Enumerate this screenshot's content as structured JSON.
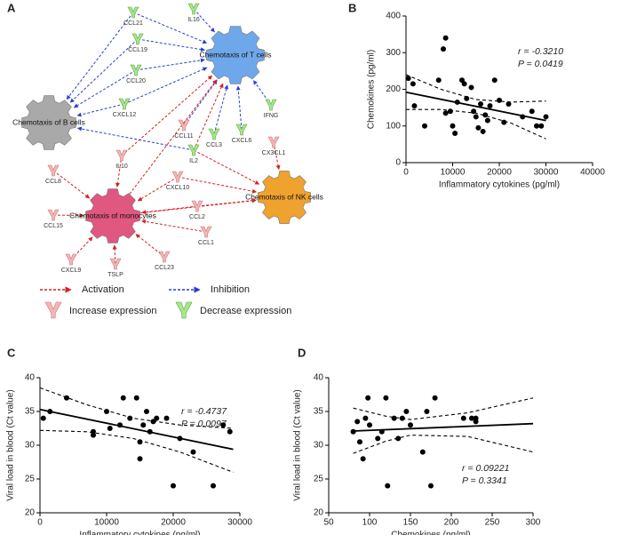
{
  "diagram": {
    "panel_label": "A",
    "hubs": [
      "Chemotaxis of T cells",
      "Chemotaxis of B cells",
      "Chemotaxis of monocytes",
      "Chemotaxis of NK cells"
    ],
    "genes": [
      "CCL21",
      "IL16",
      "CCL19",
      "CCL20",
      "CXCL12",
      "IFNG",
      "CCL11",
      "CCL3",
      "CXCL6",
      "CX3CL1",
      "IL10",
      "IL2",
      "CCL8",
      "CXCL10",
      "CCL15",
      "CCL2",
      "CCL1",
      "CXCL9",
      "TSLP",
      "CCL23"
    ],
    "legend": [
      "Activation",
      "Inhibition",
      "Increase expression",
      "Decrease expression"
    ]
  },
  "chart_data": [
    {
      "type": "scatter",
      "panel_label": "B",
      "x_label": "Inflammatory cytokines (pg/ml)",
      "y_label": "Chemokines (pg/ml)",
      "annotations": [
        "r = -0.3210",
        "P = 0.0419"
      ],
      "color": "#000000",
      "x": [
        500,
        1500,
        1800,
        4000,
        7000,
        8000,
        8500,
        8500,
        9500,
        10000,
        10500,
        11000,
        12000,
        12500,
        13000,
        14000,
        14500,
        15000,
        15500,
        16000,
        16500,
        17000,
        17500,
        18000,
        19000,
        20000,
        21000,
        22000,
        25000,
        27000,
        28000,
        29000,
        30000
      ],
      "values": [
        230,
        215,
        155,
        100,
        225,
        310,
        340,
        135,
        140,
        100,
        80,
        165,
        225,
        215,
        175,
        205,
        140,
        125,
        95,
        160,
        85,
        130,
        115,
        155,
        225,
        170,
        110,
        160,
        125,
        140,
        100,
        100,
        125
      ],
      "fit": {
        "x": [
          0,
          30000
        ],
        "values": [
          192,
          115
        ]
      },
      "ci_upper": {
        "x": [
          0,
          7500,
          15000,
          22500,
          30000
        ],
        "values": [
          240,
          200,
          172,
          165,
          168
        ]
      },
      "ci_lower": {
        "x": [
          0,
          7500,
          15000,
          22500,
          30000
        ],
        "values": [
          145,
          145,
          135,
          108,
          65
        ]
      },
      "xlim": [
        0,
        40000
      ],
      "xticks": [
        0,
        10000,
        20000,
        30000,
        40000
      ],
      "ylim": [
        0,
        400
      ],
      "yticks": [
        0,
        100,
        200,
        300,
        400
      ]
    },
    {
      "type": "scatter",
      "panel_label": "C",
      "x_label": "Inflammatory cytokines (pg/ml)",
      "y_label": "Viral load in blood (Ct value)",
      "annotations": [
        "r = -0.4737",
        "P = 0.0097"
      ],
      "color": "#000000",
      "x": [
        500,
        1500,
        4000,
        8000,
        8000,
        10000,
        10500,
        12000,
        12500,
        13500,
        14500,
        15000,
        15000,
        15500,
        16000,
        16500,
        17000,
        17500,
        19000,
        20000,
        21000,
        23000,
        26000,
        27500,
        28500
      ],
      "values": [
        34,
        35,
        37,
        31.5,
        32,
        35,
        32.5,
        33,
        37,
        34,
        37,
        28,
        30.5,
        33,
        35,
        32,
        33.5,
        34,
        34,
        24,
        31,
        29,
        24,
        33,
        32
      ],
      "fit": {
        "x": [
          0,
          29000
        ],
        "values": [
          35.3,
          29.4
        ]
      },
      "ci_upper": {
        "x": [
          0,
          7000,
          14000,
          21000,
          29000
        ],
        "values": [
          38.5,
          36,
          34,
          33,
          32.5
        ]
      },
      "ci_lower": {
        "x": [
          0,
          7000,
          14000,
          21000,
          29000
        ],
        "values": [
          32.2,
          32,
          31,
          29,
          26
        ]
      },
      "xlim": [
        0,
        30000
      ],
      "xticks": [
        0,
        10000,
        20000,
        30000
      ],
      "ylim": [
        20,
        40
      ],
      "yticks": [
        20,
        25,
        30,
        35,
        40
      ]
    },
    {
      "type": "scatter",
      "panel_label": "D",
      "x_label": "Chemokines (pg/ml)",
      "y_label": "Viral load in blood (Ct value)",
      "annotations": [
        "r = 0.09221",
        "P = 0.3341"
      ],
      "color": "#000000",
      "x": [
        80,
        85,
        88,
        92,
        95,
        98,
        100,
        110,
        115,
        120,
        122,
        130,
        135,
        140,
        145,
        150,
        165,
        170,
        175,
        180,
        215,
        225,
        230,
        230
      ],
      "values": [
        32,
        33.5,
        30.5,
        28,
        34,
        37,
        33,
        31,
        32,
        37,
        24,
        34,
        31,
        34,
        35,
        33,
        29,
        35,
        24,
        37,
        34,
        34,
        34,
        33.5
      ],
      "fit": {
        "x": [
          80,
          300
        ],
        "values": [
          32.1,
          33.2
        ]
      },
      "ci_upper": {
        "x": [
          80,
          120,
          150,
          220,
          300
        ],
        "values": [
          35.5,
          34.3,
          33.8,
          34.8,
          37
        ]
      },
      "ci_lower": {
        "x": [
          80,
          120,
          150,
          220,
          300
        ],
        "values": [
          28.8,
          30.6,
          31.5,
          31.3,
          29
        ]
      },
      "xlim": [
        50,
        300
      ],
      "xticks": [
        50,
        100,
        150,
        200,
        250,
        300
      ],
      "ylim": [
        20,
        40
      ],
      "yticks": [
        20,
        25,
        30,
        35,
        40
      ]
    }
  ]
}
